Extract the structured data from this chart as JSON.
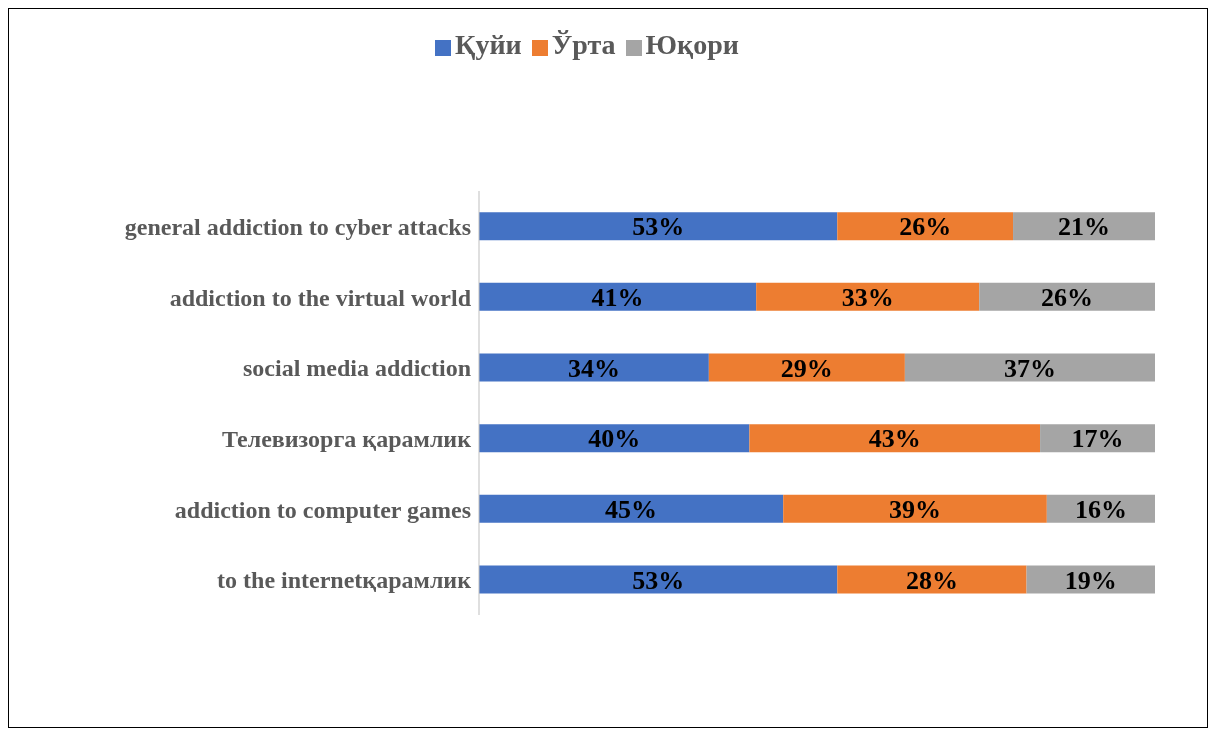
{
  "chart_data": {
    "type": "bar",
    "orientation": "horizontal",
    "stacked": true,
    "legend": "top",
    "grid": false,
    "tick_labels": "y",
    "categories": [
      "general addiction to cyber attacks",
      "addiction to the virtual world",
      "social media addiction",
      "Телевизорга қарамлик",
      "addiction to computer games",
      "to the internetқарамлик"
    ],
    "series": [
      {
        "name": "Қуйи",
        "color": "#4472c4",
        "values": [
          53,
          41,
          34,
          40,
          45,
          53
        ],
        "value_labels": [
          "53%",
          "41%",
          "34%",
          "40%",
          "45%",
          "53%"
        ]
      },
      {
        "name": "Ўрта",
        "color": "#ed7d31",
        "values": [
          26,
          33,
          29,
          43,
          39,
          28
        ],
        "value_labels": [
          "26%",
          "33%",
          "29%",
          "43%",
          "39%",
          "28%"
        ]
      },
      {
        "name": "Юқори",
        "color": "#a5a5a5",
        "values": [
          21,
          26,
          37,
          17,
          16,
          19
        ],
        "value_labels": [
          "21%",
          "26%",
          "37%",
          "17%",
          "16%",
          "19%"
        ]
      }
    ]
  }
}
